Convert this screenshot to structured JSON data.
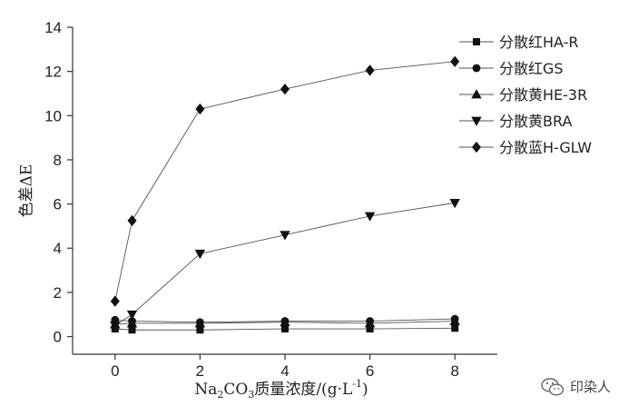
{
  "chart_data": {
    "type": "line",
    "title": "",
    "xlabel": "Na2CO3质量浓度/(g·L-1)",
    "ylabel": "色差ΔE",
    "xlim": [
      -1,
      9
    ],
    "ylim": [
      -0.8,
      14
    ],
    "x_ticks": [
      "0",
      "2",
      "4",
      "6",
      "8"
    ],
    "y_ticks": [
      "0",
      "2",
      "4",
      "6",
      "8",
      "10",
      "12",
      "14"
    ],
    "grid": false,
    "legend_position": "top-right",
    "x": [
      0,
      0.4,
      2,
      4,
      6,
      8
    ],
    "series": [
      {
        "name": "分散红HA-R",
        "marker": "square",
        "values": [
          0.35,
          0.3,
          0.3,
          0.35,
          0.35,
          0.38
        ]
      },
      {
        "name": "分散红GS",
        "marker": "circle",
        "values": [
          0.75,
          0.7,
          0.65,
          0.7,
          0.7,
          0.8
        ]
      },
      {
        "name": "分散黄HE-3R",
        "marker": "triangle-up",
        "values": [
          0.55,
          0.6,
          0.6,
          0.65,
          0.6,
          0.7
        ]
      },
      {
        "name": "分散黄BRA",
        "marker": "triangle-down",
        "values": [
          0.5,
          1.0,
          3.75,
          4.6,
          5.45,
          6.05
        ]
      },
      {
        "name": "分散蓝H-GLW",
        "marker": "diamond",
        "values": [
          1.6,
          5.25,
          10.3,
          11.2,
          12.05,
          12.45
        ]
      }
    ]
  },
  "watermark": {
    "text": "印染人",
    "icon": "wechat-icon"
  }
}
